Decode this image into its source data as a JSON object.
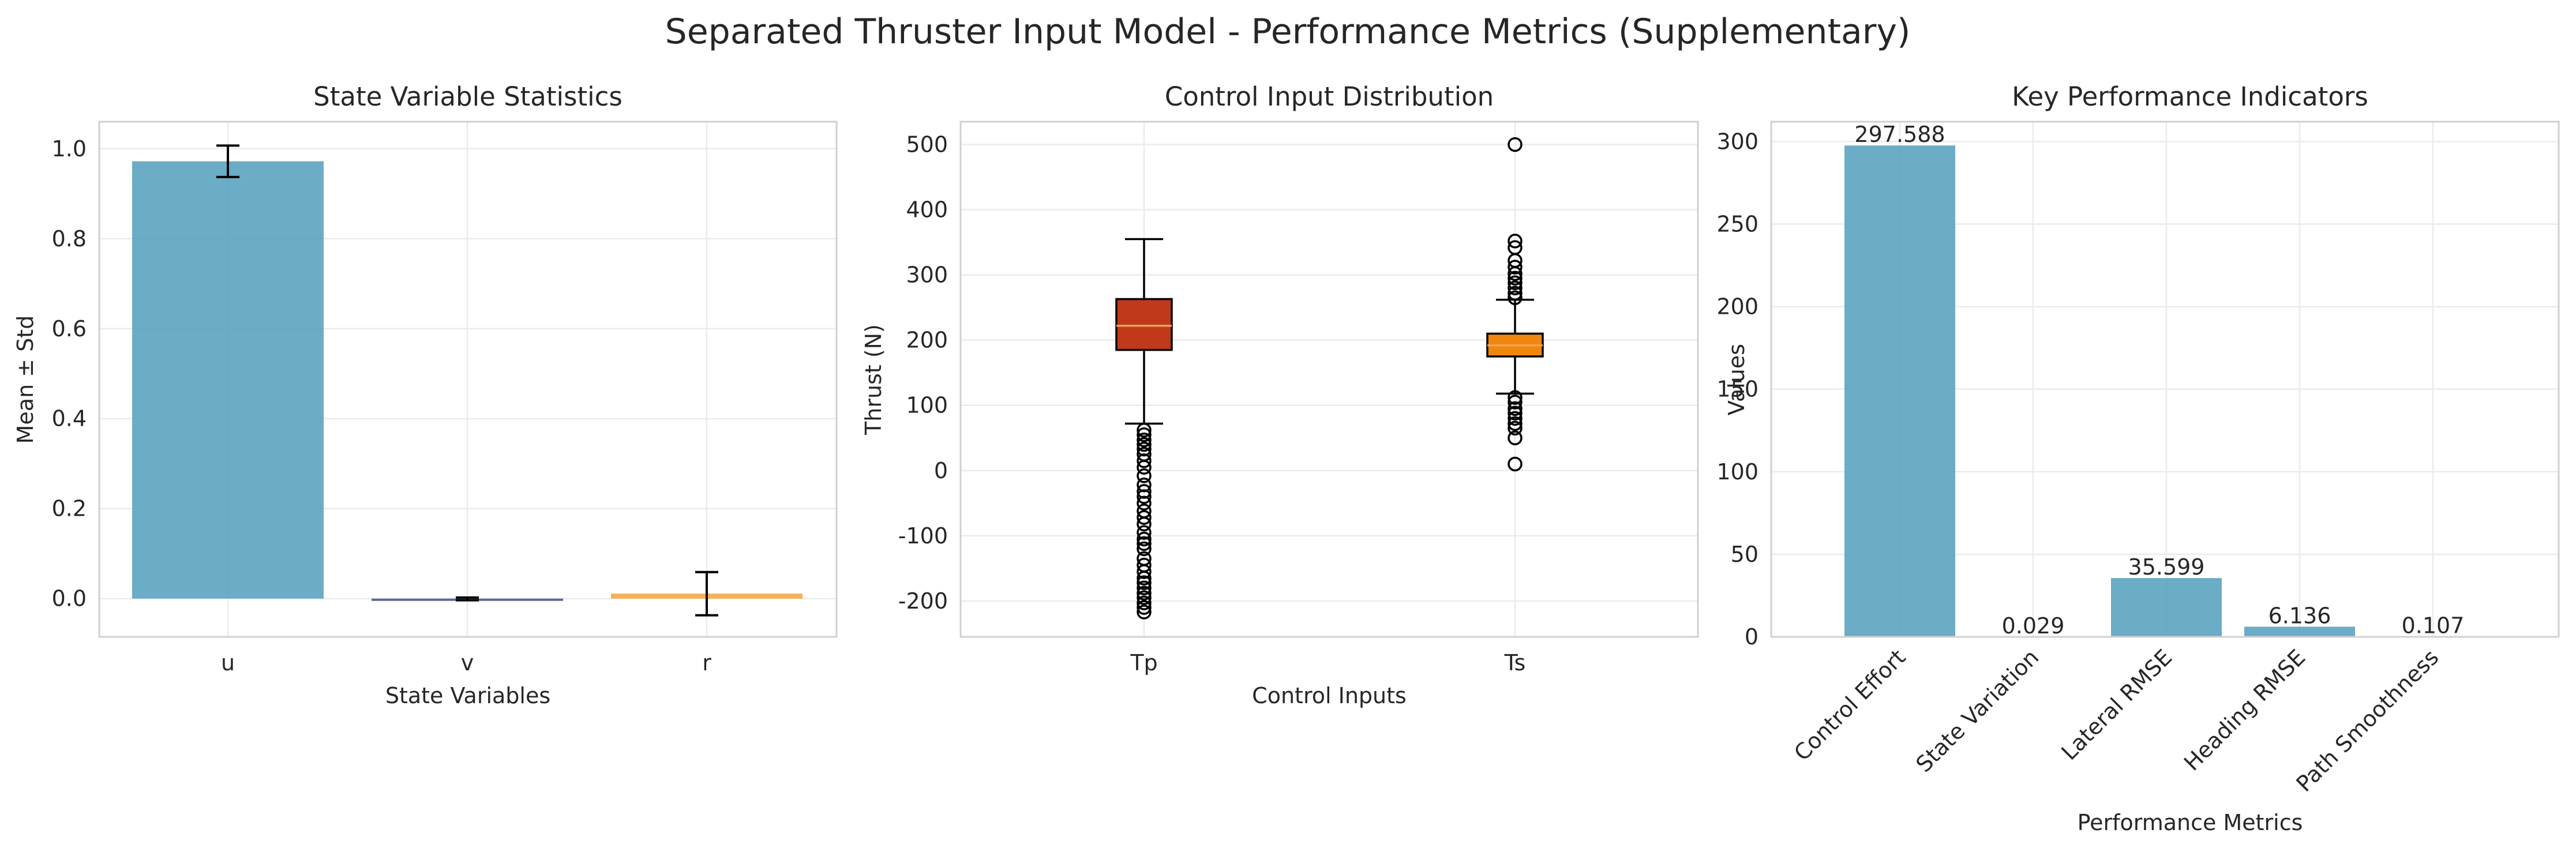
{
  "figure": {
    "title": "Separated Thruster Input Model - Performance Metrics (Supplementary)"
  },
  "chart_data": [
    {
      "type": "bar",
      "title": "State Variable Statistics",
      "xlabel": "State Variables",
      "ylabel": "Mean ± Std",
      "categories": [
        "u",
        "v",
        "r"
      ],
      "values": [
        0.972,
        -0.0007,
        0.011
      ],
      "errors": [
        0.035,
        0.003,
        0.048
      ],
      "colors": [
        "#5ba3c0",
        "#4a5a8a",
        "#f5a742"
      ],
      "ylim": [
        -0.085,
        1.06
      ],
      "yticks": [
        0.0,
        0.2,
        0.4,
        0.6,
        0.8,
        1.0
      ],
      "ytick_labels": [
        "0.0",
        "0.2",
        "0.4",
        "0.6",
        "0.8",
        "1.0"
      ],
      "grid": true
    },
    {
      "type": "box",
      "title": "Control Input Distribution",
      "xlabel": "Control Inputs",
      "ylabel": "Thrust (N)",
      "categories": [
        "Tp",
        "Ts"
      ],
      "boxes": [
        {
          "name": "Tp",
          "q1": 185,
          "median": 222,
          "q3": 263,
          "whisker_low": 72,
          "whisker_high": 355,
          "color": "#c0391b",
          "outliers": [
            62,
            55,
            47,
            40,
            33,
            25,
            15,
            5,
            -8,
            -22,
            -32,
            -40,
            -50,
            -62,
            -72,
            -82,
            -95,
            -105,
            -112,
            -120,
            -135,
            -145,
            -155,
            -165,
            -172,
            -180,
            -188,
            -195,
            -203,
            -210,
            -217
          ]
        },
        {
          "name": "Ts",
          "q1": 175,
          "median": 192,
          "q3": 210,
          "whisker_low": 118,
          "whisker_high": 262,
          "color": "#f0870d",
          "outliers": [
            500,
            352,
            342,
            322,
            312,
            302,
            295,
            288,
            280,
            272,
            265,
            112,
            105,
            95,
            88,
            80,
            72,
            65,
            50,
            10
          ]
        }
      ],
      "ylim": [
        -255,
        535
      ],
      "yticks": [
        -200,
        -100,
        0,
        100,
        200,
        300,
        400,
        500
      ],
      "ytick_labels": [
        "-200",
        "-100",
        "0",
        "100",
        "200",
        "300",
        "400",
        "500"
      ],
      "grid": true
    },
    {
      "type": "bar",
      "title": "Key Performance Indicators",
      "xlabel": "Performance Metrics",
      "ylabel": "Values",
      "categories": [
        "Control Effort",
        "State Variation",
        "Lateral RMSE",
        "Heading RMSE",
        "Path Smoothness"
      ],
      "values": [
        297.588,
        0.029,
        35.599,
        6.136,
        0.107
      ],
      "value_labels": [
        "297.588",
        "0.029",
        "35.599",
        "6.136",
        "0.107"
      ],
      "color": "#5ba3c0",
      "ylim": [
        0,
        312
      ],
      "yticks": [
        0,
        50,
        100,
        150,
        200,
        250,
        300
      ],
      "ytick_labels": [
        "0",
        "50",
        "100",
        "150",
        "200",
        "250",
        "300"
      ],
      "grid": true
    }
  ]
}
